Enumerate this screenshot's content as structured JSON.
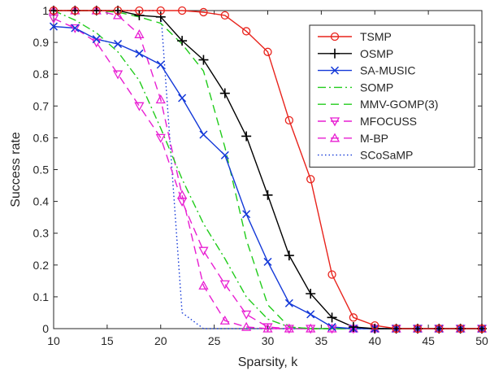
{
  "chart_data": {
    "type": "line",
    "xlabel": "Sparsity, k",
    "ylabel": "Success rate",
    "xlim": [
      10,
      50
    ],
    "ylim": [
      0,
      1
    ],
    "xticks": [
      10,
      15,
      20,
      25,
      30,
      35,
      40,
      45,
      50
    ],
    "yticks": [
      0,
      0.1,
      0.2,
      0.3,
      0.4,
      0.5,
      0.6,
      0.7,
      0.8,
      0.9,
      1
    ],
    "grid": false,
    "legend_position": "top-right",
    "x": [
      10,
      12,
      14,
      16,
      18,
      20,
      22,
      24,
      26,
      28,
      30,
      32,
      34,
      36,
      38,
      40,
      42,
      44,
      46,
      48,
      50
    ],
    "series": [
      {
        "name": "TSMP",
        "color": "#e8231c",
        "dash": "solid",
        "marker": "circle",
        "values": [
          1,
          1,
          1,
          1,
          1,
          1,
          1,
          0.995,
          0.985,
          0.935,
          0.87,
          0.655,
          0.47,
          0.17,
          0.035,
          0.01,
          0,
          0,
          0,
          0,
          0
        ]
      },
      {
        "name": "OSMP",
        "color": "#000000",
        "dash": "solid",
        "marker": "plus",
        "values": [
          1,
          1,
          1,
          1,
          0.985,
          0.98,
          0.905,
          0.845,
          0.74,
          0.605,
          0.42,
          0.23,
          0.11,
          0.035,
          0.005,
          0,
          0,
          0,
          0,
          0,
          0
        ]
      },
      {
        "name": "SA-MUSIC",
        "color": "#1338d8",
        "dash": "solid",
        "marker": "x",
        "values": [
          0.95,
          0.945,
          0.91,
          0.895,
          0.865,
          0.83,
          0.725,
          0.61,
          0.545,
          0.36,
          0.21,
          0.08,
          0.045,
          0.005,
          0,
          0,
          0,
          0,
          0,
          0,
          0
        ]
      },
      {
        "name": "SOMP",
        "color": "#21cc1b",
        "dash": "dashdot",
        "marker": "none",
        "values": [
          1,
          0.97,
          0.93,
          0.87,
          0.78,
          0.63,
          0.47,
          0.33,
          0.22,
          0.1,
          0.03,
          0.005,
          0,
          0,
          0,
          0,
          0,
          0,
          0,
          0,
          0
        ]
      },
      {
        "name": "MMV-GOMP(3)",
        "color": "#21cc1b",
        "dash": "dashed",
        "marker": "none",
        "values": [
          1,
          1,
          1,
          0.995,
          0.98,
          0.96,
          0.895,
          0.81,
          0.57,
          0.28,
          0.075,
          0.005,
          0,
          0,
          0,
          0,
          0,
          0,
          0,
          0,
          0
        ]
      },
      {
        "name": "MFOCUSS",
        "color": "#e81ed2",
        "dash": "dashed",
        "marker": "triangle-down",
        "values": [
          0.975,
          0.945,
          0.9,
          0.8,
          0.7,
          0.6,
          0.4,
          0.245,
          0.14,
          0.045,
          0.005,
          0,
          0,
          0,
          0,
          0,
          0,
          0,
          0,
          0,
          0
        ]
      },
      {
        "name": "M-BP",
        "color": "#e81ed2",
        "dash": "dashed",
        "marker": "triangle-up",
        "values": [
          1,
          1,
          1,
          0.985,
          0.925,
          0.72,
          0.42,
          0.135,
          0.025,
          0.005,
          0,
          0,
          0,
          0,
          0,
          0,
          0,
          0,
          0,
          0,
          0
        ]
      },
      {
        "name": "SCoSaMP",
        "color": "#1338d8",
        "dash": "dotted",
        "marker": "none",
        "values": [
          1,
          1,
          1,
          1,
          1,
          1,
          0.05,
          0,
          0,
          0,
          0,
          0,
          0,
          0,
          0,
          0,
          0,
          0,
          0,
          0,
          0
        ]
      }
    ]
  }
}
